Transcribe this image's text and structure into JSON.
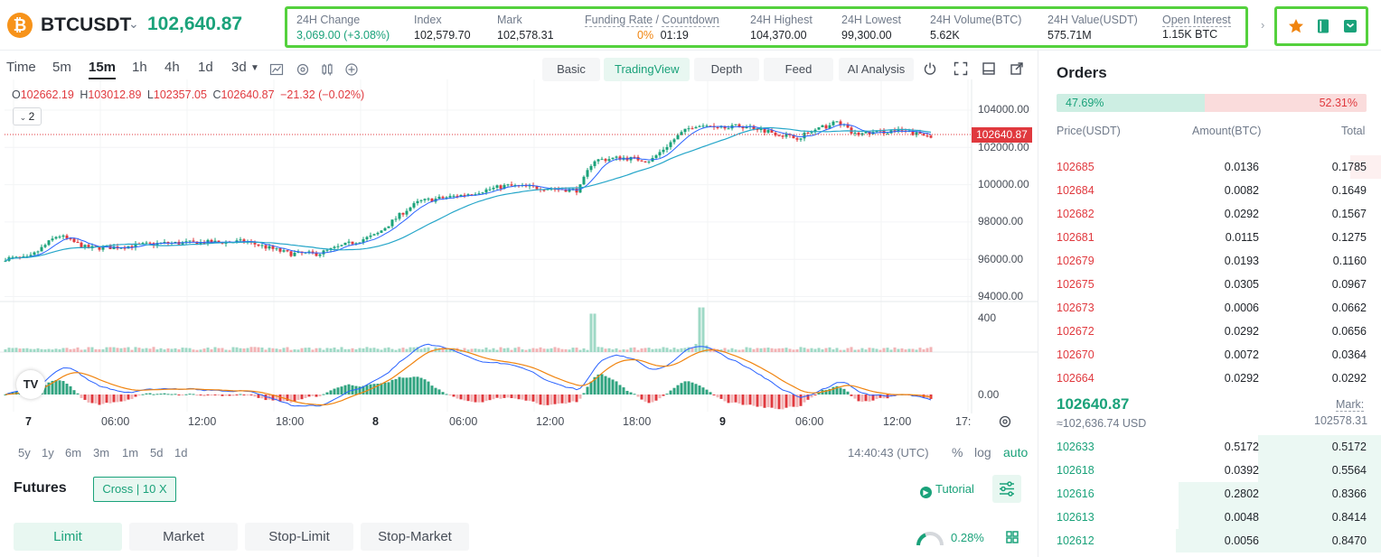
{
  "header": {
    "coin_logo": "₿",
    "symbol": "BTCUSDT",
    "last_price": "102,640.87",
    "stats": [
      {
        "label": "24H Change",
        "value": "3,069.00 (+3.08%)"
      },
      {
        "label": "Index",
        "value": "102,579.70"
      },
      {
        "label": "Mark",
        "value": "102,578.31"
      },
      {
        "label": "Funding Rate",
        "label2": "Countdown",
        "value": "0%",
        "value2": "01:19"
      },
      {
        "label": "24H Highest",
        "value": "104,370.00"
      },
      {
        "label": "24H Lowest",
        "value": "99,300.00"
      },
      {
        "label": "24H Volume(BTC)",
        "value": "5.62K"
      },
      {
        "label": "24H Value(USDT)",
        "value": "575.71M"
      },
      {
        "label": "Open Interest",
        "value": "1.15K BTC"
      }
    ],
    "tool_icons": [
      "star-icon",
      "book-icon",
      "calculator-icon"
    ]
  },
  "toolbar": {
    "timeframes": [
      "Time",
      "5m",
      "15m",
      "1h",
      "4h",
      "1d",
      "3d"
    ],
    "active_timeframe": "15m",
    "views": [
      "Basic",
      "TradingView",
      "Depth",
      "Feed",
      "AI Analysis"
    ],
    "active_view": "TradingView"
  },
  "chart": {
    "ohlc": {
      "o": "102662.19",
      "h": "103012.89",
      "l": "102357.05",
      "c": "102640.87",
      "chg": "−21.32 (−0.02%)"
    },
    "indicator_toggle": "2",
    "price_tag": "102640.87",
    "y_labels": [
      "104000.00",
      "102000.00",
      "100000.00",
      "98000.00",
      "96000.00",
      "94000.00"
    ],
    "volume_label": "400",
    "macd_label": "0.00",
    "x_labels": [
      "7",
      "06:00",
      "12:00",
      "18:00",
      "8",
      "06:00",
      "12:00",
      "18:00",
      "9",
      "06:00",
      "12:00",
      "17:"
    ],
    "tv_logo": "TV"
  },
  "chart_data": {
    "type": "candlestick",
    "interval": "15m",
    "ylim": [
      94000,
      104500
    ],
    "y_ticks": [
      94000,
      96000,
      98000,
      100000,
      102000,
      104000
    ],
    "current_price": 102640.87,
    "price_path": [
      {
        "t": "7 00:00",
        "price": 96050
      },
      {
        "t": "7 02:00",
        "price": 97300
      },
      {
        "t": "7 04:00",
        "price": 96600
      },
      {
        "t": "7 06:00",
        "price": 96650
      },
      {
        "t": "7 09:00",
        "price": 96850
      },
      {
        "t": "7 12:00",
        "price": 96900
      },
      {
        "t": "7 15:00",
        "price": 96950
      },
      {
        "t": "7 18:00",
        "price": 96300
      },
      {
        "t": "7 20:00",
        "price": 96300
      },
      {
        "t": "8 00:00",
        "price": 97300
      },
      {
        "t": "8 02:00",
        "price": 98600
      },
      {
        "t": "8 03:00",
        "price": 99100
      },
      {
        "t": "8 06:00",
        "price": 99450
      },
      {
        "t": "8 09:00",
        "price": 99950
      },
      {
        "t": "8 12:00",
        "price": 99800
      },
      {
        "t": "8 14:00",
        "price": 99700
      },
      {
        "t": "8 15:00",
        "price": 101300
      },
      {
        "t": "8 17:00",
        "price": 101450
      },
      {
        "t": "8 19:00",
        "price": 101300
      },
      {
        "t": "8 21:00",
        "price": 102700
      },
      {
        "t": "8 22:00",
        "price": 103200
      },
      {
        "t": "9 02:00",
        "price": 103100
      },
      {
        "t": "9 05:00",
        "price": 102500
      },
      {
        "t": "9 08:00",
        "price": 103400
      },
      {
        "t": "9 09:00",
        "price": 102700
      },
      {
        "t": "9 12:00",
        "price": 102900
      },
      {
        "t": "9 14:00",
        "price": 102640
      }
    ],
    "volume_ylim": [
      0,
      400
    ],
    "volume_spikes": [
      {
        "t": "8 15:00",
        "value": 370
      },
      {
        "t": "8 22:30",
        "value": 430
      }
    ]
  },
  "range_bar": {
    "ranges": [
      "5y",
      "1y",
      "6m",
      "3m",
      "1m",
      "5d",
      "1d"
    ],
    "utc": "14:40:43 (UTC)",
    "scale": [
      "%",
      "log",
      "auto"
    ],
    "active_scale": "auto"
  },
  "futures": {
    "title": "Futures",
    "margin_mode": "Cross | 10 X",
    "tutorial": "Tutorial",
    "order_types": [
      "Limit",
      "Market",
      "Stop-Limit",
      "Stop-Market"
    ],
    "active_order_type": "Limit",
    "gauge_value": "0.28%"
  },
  "orderbook": {
    "title": "Orders",
    "buy_ratio": "47.69%",
    "sell_ratio": "52.31%",
    "buy_ratio_value": 0.4769,
    "headers": {
      "price": "Price(USDT)",
      "amount": "Amount(BTC)",
      "total": "Total"
    },
    "asks": [
      {
        "price": "102685",
        "amount": "0.0136",
        "total": "0.1785",
        "depth": 0.09
      },
      {
        "price": "102684",
        "amount": "0.0082",
        "total": "0.1649",
        "depth": 0.0
      },
      {
        "price": "102682",
        "amount": "0.0292",
        "total": "0.1567",
        "depth": 0.0
      },
      {
        "price": "102681",
        "amount": "0.0115",
        "total": "0.1275",
        "depth": 0.0
      },
      {
        "price": "102679",
        "amount": "0.0193",
        "total": "0.1160",
        "depth": 0.0
      },
      {
        "price": "102675",
        "amount": "0.0305",
        "total": "0.0967",
        "depth": 0.0
      },
      {
        "price": "102673",
        "amount": "0.0006",
        "total": "0.0662",
        "depth": 0.0
      },
      {
        "price": "102672",
        "amount": "0.0292",
        "total": "0.0656",
        "depth": 0.0
      },
      {
        "price": "102670",
        "amount": "0.0072",
        "total": "0.0364",
        "depth": 0.0
      },
      {
        "price": "102664",
        "amount": "0.0292",
        "total": "0.0292",
        "depth": 0.0
      }
    ],
    "mid_price": "102640.87",
    "mid_usd": "≈102,636.74  USD",
    "mark_label": "Mark:",
    "mark_value": "102578.31",
    "bids": [
      {
        "price": "102633",
        "amount": "0.5172",
        "total": "0.5172",
        "depth": 0.36
      },
      {
        "price": "102618",
        "amount": "0.0392",
        "total": "0.5564",
        "depth": 0.36
      },
      {
        "price": "102616",
        "amount": "0.2802",
        "total": "0.8366",
        "depth": 0.59
      },
      {
        "price": "102613",
        "amount": "0.0048",
        "total": "0.8414",
        "depth": 0.59
      },
      {
        "price": "102612",
        "amount": "0.0056",
        "total": "0.8470",
        "depth": 0.6
      }
    ]
  },
  "colors": {
    "up": "#1aa27a",
    "down": "#e0393e",
    "highlight_border": "#54d13d",
    "ma_fast": "#2962ff",
    "ma_slow": "#26a6c9",
    "macd_signal": "#f0840f"
  }
}
